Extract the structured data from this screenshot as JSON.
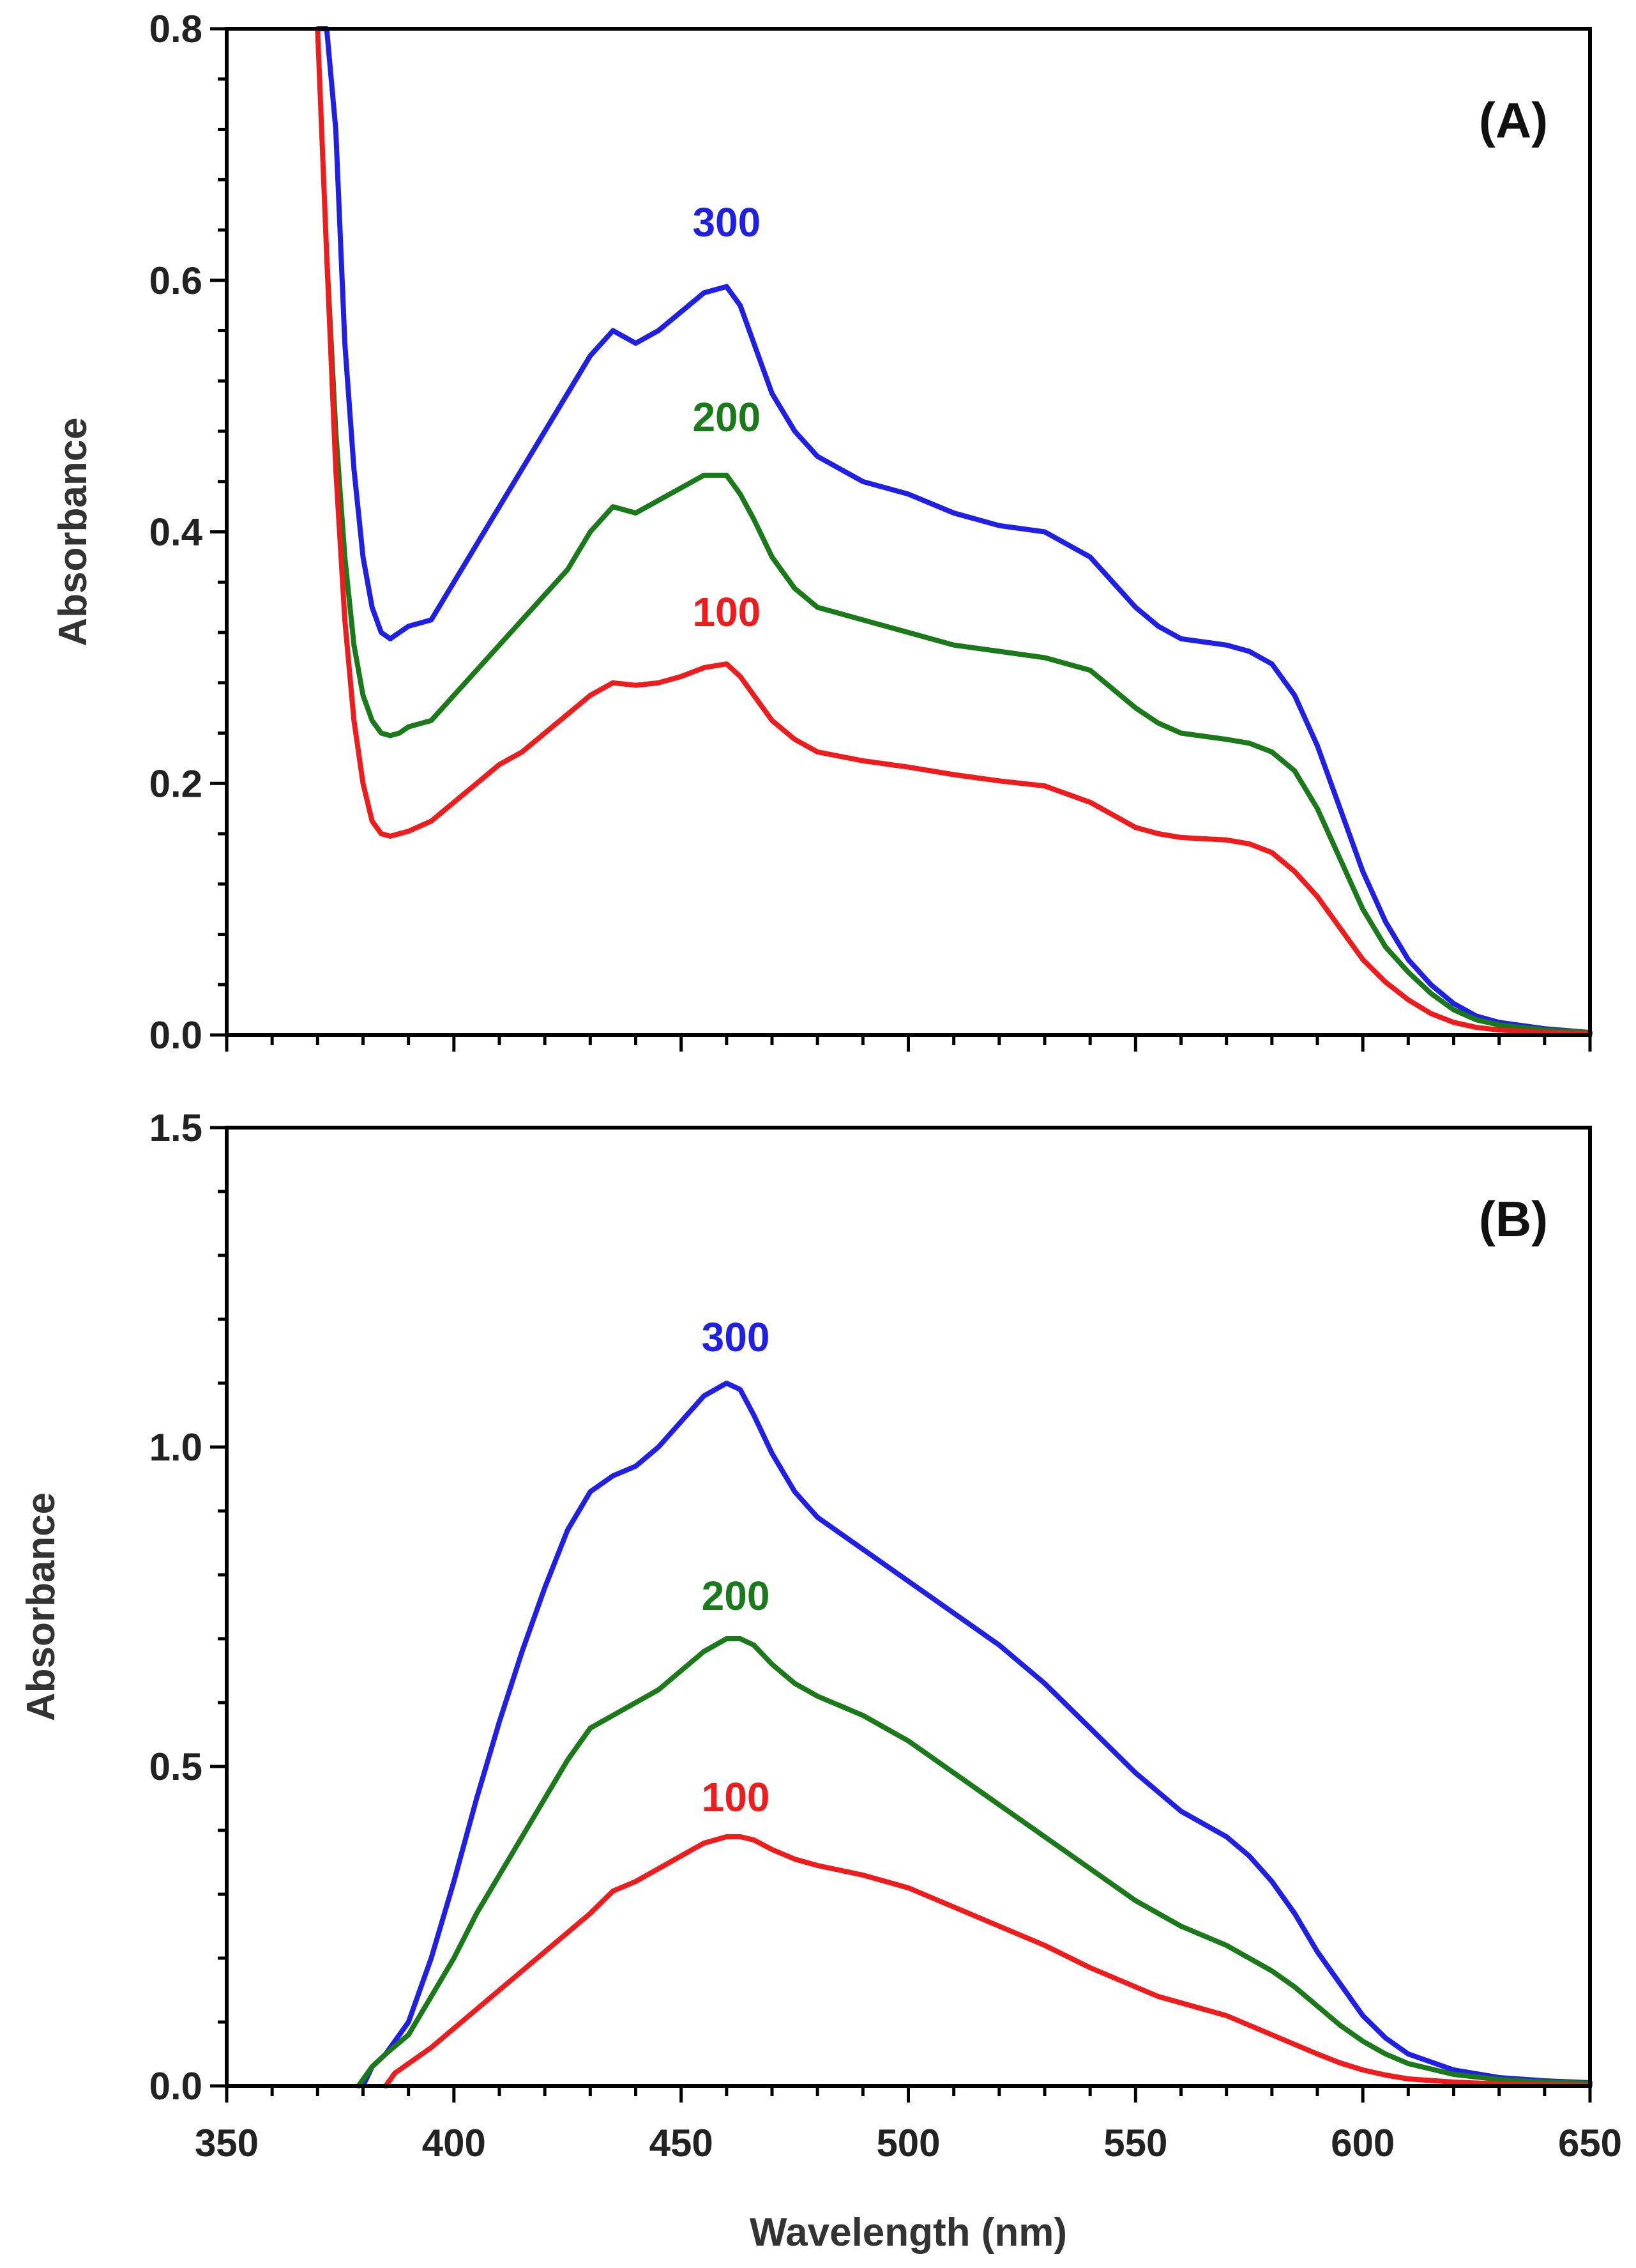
{
  "colors": {
    "series_300": "#1f1fe6",
    "series_200": "#1a7a1a",
    "series_100": "#ee1c1c",
    "axis": "#000000"
  },
  "chart_data": [
    {
      "type": "line",
      "panel_label": "(A)",
      "xlabel": "",
      "ylabel": "Absorbance",
      "xlim": [
        350,
        650
      ],
      "ylim": [
        0,
        0.8
      ],
      "y_ticks": [
        0.0,
        0.2,
        0.4,
        0.6,
        0.8
      ],
      "y_tick_labels": [
        "0.0",
        "0.2",
        "0.4",
        "0.6",
        "0.8"
      ],
      "series": [
        {
          "name": "300",
          "color_key": "series_300",
          "label_at": [
            460,
            0.635
          ],
          "x": [
            370,
            372,
            374,
            376,
            378,
            380,
            382,
            384,
            386,
            388,
            390,
            395,
            400,
            405,
            410,
            415,
            420,
            425,
            430,
            435,
            440,
            445,
            450,
            455,
            460,
            463,
            466,
            470,
            475,
            480,
            490,
            500,
            510,
            520,
            530,
            540,
            545,
            550,
            555,
            560,
            570,
            575,
            580,
            585,
            590,
            595,
            600,
            605,
            610,
            615,
            620,
            625,
            630,
            640,
            650
          ],
          "y": [
            0.8,
            0.8,
            0.72,
            0.55,
            0.45,
            0.38,
            0.34,
            0.32,
            0.315,
            0.32,
            0.325,
            0.33,
            0.36,
            0.39,
            0.42,
            0.45,
            0.48,
            0.51,
            0.54,
            0.56,
            0.55,
            0.56,
            0.575,
            0.59,
            0.595,
            0.58,
            0.55,
            0.51,
            0.48,
            0.46,
            0.44,
            0.43,
            0.415,
            0.405,
            0.4,
            0.38,
            0.36,
            0.34,
            0.325,
            0.315,
            0.31,
            0.305,
            0.295,
            0.27,
            0.23,
            0.18,
            0.13,
            0.09,
            0.06,
            0.04,
            0.025,
            0.015,
            0.01,
            0.005,
            0.002
          ]
        },
        {
          "name": "200",
          "color_key": "series_200",
          "label_at": [
            460,
            0.48
          ],
          "x": [
            372,
            374,
            376,
            378,
            380,
            382,
            384,
            386,
            388,
            390,
            395,
            400,
            405,
            410,
            415,
            420,
            425,
            430,
            435,
            440,
            445,
            450,
            455,
            460,
            463,
            466,
            470,
            475,
            480,
            490,
            500,
            510,
            520,
            530,
            540,
            545,
            550,
            555,
            560,
            570,
            575,
            580,
            585,
            590,
            595,
            600,
            605,
            610,
            615,
            620,
            625,
            630,
            640,
            650
          ],
          "y": [
            0.62,
            0.48,
            0.38,
            0.31,
            0.27,
            0.25,
            0.24,
            0.238,
            0.24,
            0.245,
            0.25,
            0.27,
            0.29,
            0.31,
            0.33,
            0.35,
            0.37,
            0.4,
            0.42,
            0.415,
            0.425,
            0.435,
            0.445,
            0.445,
            0.43,
            0.41,
            0.38,
            0.355,
            0.34,
            0.33,
            0.32,
            0.31,
            0.305,
            0.3,
            0.29,
            0.275,
            0.26,
            0.248,
            0.24,
            0.235,
            0.232,
            0.225,
            0.21,
            0.18,
            0.14,
            0.1,
            0.07,
            0.05,
            0.033,
            0.02,
            0.012,
            0.008,
            0.004,
            0.002
          ]
        },
        {
          "name": "100",
          "color_key": "series_100",
          "label_at": [
            460,
            0.325
          ],
          "x": [
            370,
            372,
            374,
            376,
            378,
            380,
            382,
            384,
            386,
            388,
            390,
            395,
            400,
            405,
            410,
            415,
            420,
            425,
            430,
            435,
            440,
            445,
            450,
            455,
            460,
            463,
            466,
            470,
            475,
            480,
            490,
            500,
            510,
            520,
            530,
            540,
            545,
            550,
            555,
            560,
            570,
            575,
            580,
            585,
            590,
            595,
            600,
            605,
            610,
            615,
            620,
            625,
            630,
            640,
            650
          ],
          "y": [
            0.8,
            0.62,
            0.45,
            0.33,
            0.25,
            0.2,
            0.17,
            0.16,
            0.158,
            0.16,
            0.162,
            0.17,
            0.185,
            0.2,
            0.215,
            0.225,
            0.24,
            0.255,
            0.27,
            0.28,
            0.278,
            0.28,
            0.285,
            0.292,
            0.295,
            0.285,
            0.27,
            0.25,
            0.235,
            0.225,
            0.218,
            0.213,
            0.207,
            0.202,
            0.198,
            0.185,
            0.175,
            0.165,
            0.16,
            0.157,
            0.155,
            0.152,
            0.145,
            0.13,
            0.11,
            0.085,
            0.06,
            0.042,
            0.028,
            0.017,
            0.01,
            0.006,
            0.004,
            0.002,
            0.001
          ]
        }
      ]
    },
    {
      "type": "line",
      "panel_label": "(B)",
      "xlabel": "Wavelength (nm)",
      "ylabel": "Absorbance",
      "xlim": [
        350,
        650
      ],
      "ylim": [
        0,
        1.5
      ],
      "x_ticks": [
        350,
        400,
        450,
        500,
        550,
        600,
        650
      ],
      "x_tick_labels": [
        "350",
        "400",
        "450",
        "500",
        "550",
        "600",
        "650"
      ],
      "y_ticks": [
        0.0,
        0.5,
        1.0,
        1.5
      ],
      "y_tick_labels": [
        "0.0",
        "0.5",
        "1.0",
        "1.5"
      ],
      "series": [
        {
          "name": "300",
          "color_key": "series_300",
          "label_at": [
            462,
            1.15
          ],
          "x": [
            380,
            382,
            385,
            390,
            395,
            400,
            405,
            410,
            415,
            420,
            425,
            430,
            435,
            440,
            445,
            450,
            455,
            460,
            463,
            466,
            470,
            475,
            480,
            490,
            500,
            510,
            520,
            530,
            540,
            550,
            555,
            560,
            565,
            570,
            575,
            580,
            585,
            590,
            595,
            600,
            605,
            610,
            620,
            630,
            640,
            650
          ],
          "y": [
            0.0,
            0.03,
            0.05,
            0.1,
            0.2,
            0.32,
            0.45,
            0.57,
            0.68,
            0.78,
            0.87,
            0.93,
            0.955,
            0.97,
            1.0,
            1.04,
            1.08,
            1.1,
            1.09,
            1.05,
            0.99,
            0.93,
            0.89,
            0.84,
            0.79,
            0.74,
            0.69,
            0.63,
            0.56,
            0.49,
            0.46,
            0.43,
            0.41,
            0.39,
            0.36,
            0.32,
            0.27,
            0.21,
            0.16,
            0.11,
            0.075,
            0.05,
            0.025,
            0.013,
            0.008,
            0.005
          ]
        },
        {
          "name": "200",
          "color_key": "series_200",
          "label_at": [
            462,
            0.745
          ],
          "x": [
            379,
            382,
            385,
            390,
            395,
            400,
            405,
            410,
            415,
            420,
            425,
            430,
            435,
            440,
            445,
            450,
            455,
            460,
            463,
            466,
            470,
            475,
            480,
            490,
            500,
            510,
            520,
            530,
            540,
            550,
            555,
            560,
            565,
            570,
            575,
            580,
            585,
            590,
            595,
            600,
            605,
            610,
            620,
            630,
            640,
            650
          ],
          "y": [
            0.0,
            0.03,
            0.05,
            0.08,
            0.14,
            0.2,
            0.27,
            0.33,
            0.39,
            0.45,
            0.51,
            0.56,
            0.58,
            0.6,
            0.62,
            0.65,
            0.68,
            0.7,
            0.7,
            0.69,
            0.66,
            0.63,
            0.61,
            0.58,
            0.54,
            0.49,
            0.44,
            0.39,
            0.34,
            0.29,
            0.27,
            0.25,
            0.235,
            0.22,
            0.2,
            0.18,
            0.155,
            0.125,
            0.095,
            0.07,
            0.05,
            0.035,
            0.018,
            0.01,
            0.006,
            0.004
          ]
        },
        {
          "name": "100",
          "color_key": "series_100",
          "label_at": [
            462,
            0.43
          ],
          "x": [
            385,
            387,
            390,
            395,
            400,
            405,
            410,
            415,
            420,
            425,
            430,
            435,
            440,
            445,
            450,
            455,
            460,
            463,
            466,
            470,
            475,
            480,
            490,
            500,
            510,
            520,
            530,
            540,
            550,
            555,
            560,
            565,
            570,
            575,
            580,
            585,
            590,
            595,
            600,
            605,
            610,
            620,
            630,
            640,
            650
          ],
          "y": [
            0.0,
            0.02,
            0.035,
            0.06,
            0.09,
            0.12,
            0.15,
            0.18,
            0.21,
            0.24,
            0.27,
            0.305,
            0.32,
            0.34,
            0.36,
            0.38,
            0.39,
            0.39,
            0.385,
            0.37,
            0.355,
            0.345,
            0.33,
            0.31,
            0.28,
            0.25,
            0.22,
            0.185,
            0.155,
            0.14,
            0.13,
            0.12,
            0.11,
            0.095,
            0.08,
            0.065,
            0.05,
            0.036,
            0.025,
            0.017,
            0.011,
            0.006,
            0.003,
            0.002,
            0.001
          ]
        }
      ]
    }
  ]
}
